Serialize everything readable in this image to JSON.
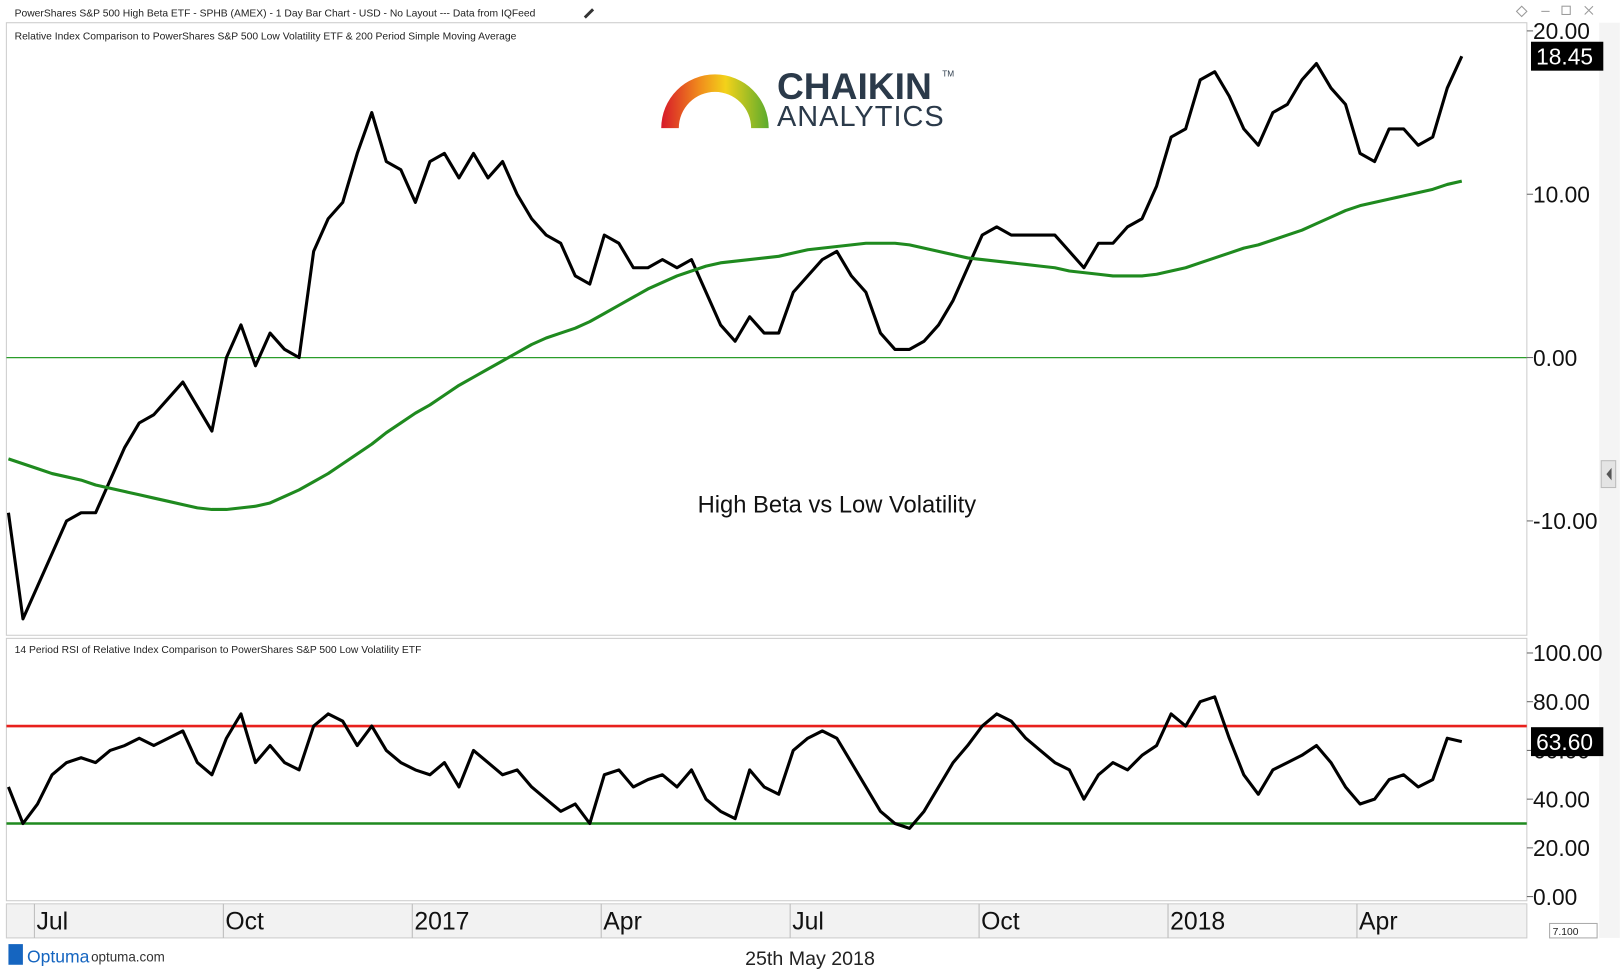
{
  "header": {
    "title": "PowerShares S&P 500 High Beta ETF - SPHB (AMEX) - 1 Day Bar Chart - USD - No Layout --- Data from IQFeed"
  },
  "logo": {
    "line1": "CHAIKIN",
    "tm": "TM",
    "line2": "ANALYTICS"
  },
  "x_axis": {
    "categories": [
      null,
      null,
      "Jul",
      null,
      null,
      null,
      null,
      null,
      null,
      null,
      null,
      null,
      null,
      null,
      null,
      "Oct",
      null,
      null,
      null,
      null,
      null,
      null,
      null,
      null,
      null,
      null,
      null,
      null,
      "2017",
      null,
      null,
      null,
      null,
      null,
      null,
      null,
      null,
      null,
      null,
      null,
      null,
      "Apr",
      null,
      null,
      null,
      null,
      null,
      null,
      null,
      null,
      null,
      null,
      null,
      null,
      "Jul",
      null,
      null,
      null,
      null,
      null,
      null,
      null,
      null,
      null,
      null,
      null,
      null,
      "Oct",
      null,
      null,
      null,
      null,
      null,
      null,
      null,
      null,
      null,
      null,
      null,
      null,
      "2018",
      null,
      null,
      null,
      null,
      null,
      null,
      null,
      null,
      null,
      null,
      null,
      null,
      "Apr",
      null,
      null,
      null,
      null,
      null,
      null,
      null
    ]
  },
  "chart_data": [
    {
      "type": "line",
      "subtitle": "Relative Index Comparison to PowerShares S&P 500 Low Volatility ETF & 200 Period Simple Moving Average",
      "annotation": "High Beta vs Low Volatility",
      "ylim": [
        -17,
        20.5
      ],
      "yticks": [
        {
          "value": 20,
          "label": "20.00"
        },
        {
          "value": 10,
          "label": "10.00"
        },
        {
          "value": 0,
          "label": "0.00"
        },
        {
          "value": -10,
          "label": "-10.00"
        }
      ],
      "hlines": [
        {
          "value": 0,
          "color": "#2a9d2a"
        }
      ],
      "series": [
        {
          "color": "#000000",
          "values": [
            -9.5,
            -16,
            -14,
            -12,
            -10,
            -9.5,
            -9.5,
            -7.5,
            -5.5,
            -4,
            -3.5,
            -2.5,
            -1.5,
            -3,
            -4.5,
            0,
            2,
            -0.5,
            1.5,
            0.5,
            0,
            6.5,
            8.5,
            9.5,
            12.5,
            15,
            12,
            11.5,
            9.5,
            12,
            12.5,
            11,
            12.5,
            11,
            12,
            10,
            8.5,
            7.5,
            7,
            5,
            4.5,
            7.5,
            7,
            5.5,
            5.5,
            6,
            5.5,
            6,
            4,
            2,
            1,
            2.5,
            1.5,
            1.5,
            4,
            5,
            6,
            6.5,
            5,
            4,
            1.5,
            0.5,
            0.5,
            1,
            2,
            3.5,
            5.5,
            7.5,
            8,
            7.5,
            7.5,
            7.5,
            7.5,
            6.5,
            5.5,
            7,
            7,
            8,
            8.5,
            10.5,
            13.5,
            14,
            17,
            17.5,
            16,
            14,
            13,
            15,
            15.5,
            17,
            18,
            16.5,
            15.5,
            12.5,
            12,
            14,
            14,
            13,
            13.5,
            16.5,
            18.45
          ],
          "value_labels": [
            null,
            null,
            null,
            null,
            null,
            null,
            null,
            null,
            null,
            null,
            null,
            null,
            null,
            null,
            null,
            null,
            null,
            null,
            null,
            null,
            null,
            null,
            null,
            null,
            null,
            null,
            null,
            null,
            null,
            null,
            null,
            null,
            null,
            null,
            null,
            null,
            null,
            null,
            null,
            null,
            null,
            null,
            null,
            null,
            null,
            null,
            null,
            null,
            null,
            null,
            null,
            null,
            null,
            null,
            null,
            null,
            null,
            null,
            null,
            null,
            null,
            null,
            null,
            null,
            null,
            null,
            null,
            null,
            null,
            null,
            null,
            null,
            null,
            null,
            null,
            null,
            null,
            null,
            null,
            null,
            null,
            null,
            null,
            null,
            null,
            null,
            null,
            null,
            null,
            null,
            null,
            null,
            null,
            null,
            null,
            null,
            null,
            null,
            null,
            null,
            "18.45"
          ]
        },
        {
          "color": "#1f8a1f",
          "values": [
            -6.2,
            -6.5,
            -6.8,
            -7.1,
            -7.3,
            -7.5,
            -7.8,
            -8.0,
            -8.2,
            -8.4,
            -8.6,
            -8.8,
            -9.0,
            -9.2,
            -9.3,
            -9.3,
            -9.2,
            -9.1,
            -8.9,
            -8.5,
            -8.1,
            -7.6,
            -7.1,
            -6.5,
            -5.9,
            -5.3,
            -4.6,
            -4.0,
            -3.4,
            -2.9,
            -2.3,
            -1.7,
            -1.2,
            -0.7,
            -0.2,
            0.3,
            0.8,
            1.2,
            1.5,
            1.8,
            2.2,
            2.7,
            3.2,
            3.7,
            4.2,
            4.6,
            5.0,
            5.3,
            5.6,
            5.8,
            5.9,
            6.0,
            6.1,
            6.2,
            6.4,
            6.6,
            6.7,
            6.8,
            6.9,
            7.0,
            7.0,
            7.0,
            6.9,
            6.7,
            6.5,
            6.3,
            6.1,
            6.0,
            5.9,
            5.8,
            5.7,
            5.6,
            5.5,
            5.3,
            5.2,
            5.1,
            5.0,
            5.0,
            5.0,
            5.1,
            5.3,
            5.5,
            5.8,
            6.1,
            6.4,
            6.7,
            6.9,
            7.2,
            7.5,
            7.8,
            8.2,
            8.6,
            9.0,
            9.3,
            9.5,
            9.7,
            9.9,
            10.1,
            10.3,
            10.6,
            10.8
          ]
        }
      ]
    },
    {
      "type": "line",
      "subtitle": "14 Period RSI of Relative Index Comparison to PowerShares S&P 500 Low Volatility ETF",
      "ylim": [
        -1.7,
        106
      ],
      "yticks": [
        {
          "value": 100,
          "label": "100.00"
        },
        {
          "value": 80,
          "label": "80.00"
        },
        {
          "value": 60,
          "label": "60.00"
        },
        {
          "value": 40,
          "label": "40.00"
        },
        {
          "value": 20,
          "label": "20.00"
        },
        {
          "value": 0,
          "label": "0.00"
        }
      ],
      "hlines": [
        {
          "value": 70,
          "color": "#e8201c"
        },
        {
          "value": 30,
          "color": "#1f8a1f"
        }
      ],
      "series": [
        {
          "color": "#000000",
          "values": [
            45,
            30,
            38,
            50,
            55,
            57,
            55,
            60,
            62,
            65,
            62,
            65,
            68,
            55,
            50,
            65,
            75,
            55,
            62,
            55,
            52,
            70,
            75,
            72,
            62,
            70,
            60,
            55,
            52,
            50,
            55,
            45,
            60,
            55,
            50,
            52,
            45,
            40,
            35,
            38,
            30,
            50,
            52,
            45,
            48,
            50,
            45,
            52,
            40,
            35,
            32,
            52,
            45,
            42,
            60,
            65,
            68,
            65,
            55,
            45,
            35,
            30,
            28,
            35,
            45,
            55,
            62,
            70,
            75,
            72,
            65,
            60,
            55,
            52,
            40,
            50,
            55,
            52,
            58,
            62,
            75,
            70,
            80,
            82,
            65,
            50,
            42,
            52,
            55,
            58,
            62,
            55,
            45,
            38,
            40,
            48,
            50,
            45,
            48,
            65,
            63.6
          ],
          "value_labels": [
            null,
            null,
            null,
            null,
            null,
            null,
            null,
            null,
            null,
            null,
            null,
            null,
            null,
            null,
            null,
            null,
            null,
            null,
            null,
            null,
            null,
            null,
            null,
            null,
            null,
            null,
            null,
            null,
            null,
            null,
            null,
            null,
            null,
            null,
            null,
            null,
            null,
            null,
            null,
            null,
            null,
            null,
            null,
            null,
            null,
            null,
            null,
            null,
            null,
            null,
            null,
            null,
            null,
            null,
            null,
            null,
            null,
            null,
            null,
            null,
            null,
            null,
            null,
            null,
            null,
            null,
            null,
            null,
            null,
            null,
            null,
            null,
            null,
            null,
            null,
            null,
            null,
            null,
            null,
            null,
            null,
            null,
            null,
            null,
            null,
            null,
            null,
            null,
            null,
            null,
            null,
            null,
            null,
            null,
            null,
            null,
            null,
            null,
            null,
            null,
            "63.60"
          ]
        }
      ]
    }
  ],
  "footer": {
    "brand": "Optuma",
    "site": "optuma.com",
    "date": "25th May 2018",
    "zoom": "7.100"
  }
}
